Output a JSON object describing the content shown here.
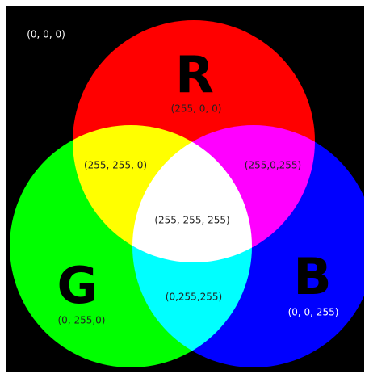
{
  "background_label": "(0, 0, 0)",
  "letters": {
    "red": "R",
    "green": "G",
    "blue": "B"
  },
  "regions": {
    "red": "(255, 0, 0)",
    "green": "(0, 255,0)",
    "blue": "(0, 0, 255)",
    "yellow": "(255, 255, 0)",
    "magenta": "(255,0,255)",
    "cyan": "(0,255,255)",
    "white": "(255, 255, 255)"
  }
}
